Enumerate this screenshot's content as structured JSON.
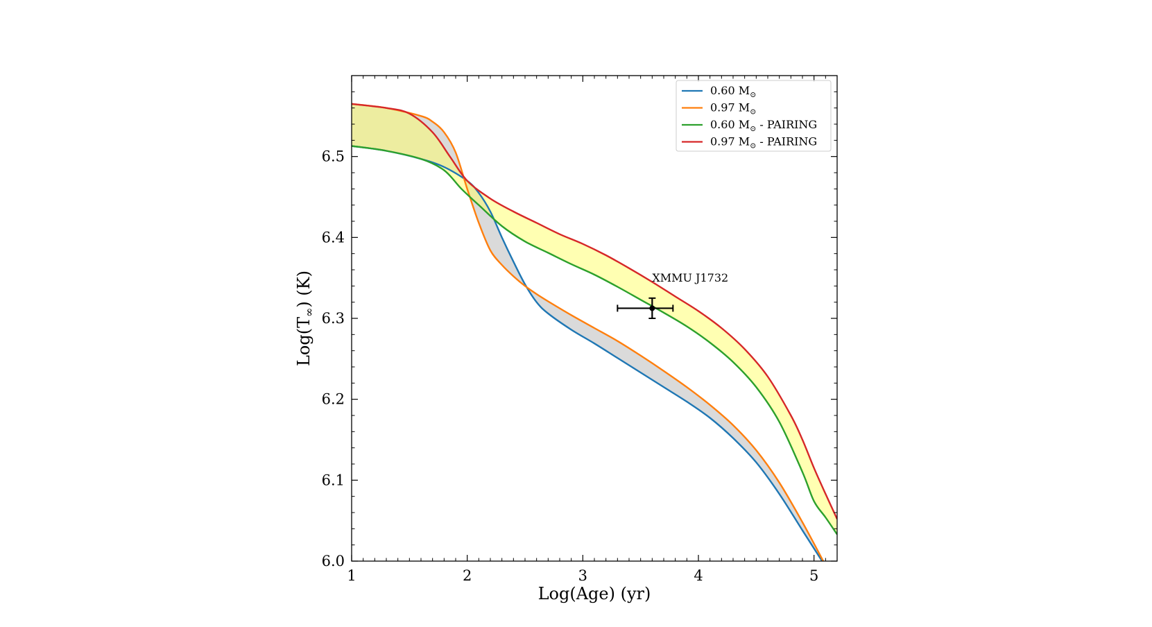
{
  "chart_data": {
    "type": "line",
    "xlabel": "Log(Age) (yr)",
    "ylabel_pre": "Log(T",
    "ylabel_sub": "∞",
    "ylabel_post": ") (K)",
    "xlim": [
      1,
      5.2
    ],
    "ylim": [
      6.0,
      6.6
    ],
    "x_ticks": [
      1,
      2,
      3,
      4,
      5
    ],
    "y_ticks": [
      6.0,
      6.1,
      6.2,
      6.3,
      6.4,
      6.5
    ],
    "x_tick_labels": [
      "1",
      "2",
      "3",
      "4",
      "5"
    ],
    "y_tick_labels": [
      "6.0",
      "6.1",
      "6.2",
      "6.3",
      "6.4",
      "6.5"
    ],
    "legend_position": "top-right",
    "series": [
      {
        "name_main": "0.60 M",
        "name_sub": "⊙",
        "name_suffix": "",
        "color": "#1f77b4",
        "x": [
          1.0,
          1.3,
          1.6,
          1.8,
          2.0,
          2.1,
          2.2,
          2.3,
          2.4,
          2.5,
          2.6,
          2.7,
          2.9,
          3.1,
          3.3,
          3.5,
          3.7,
          3.9,
          4.1,
          4.3,
          4.5,
          4.7,
          4.9,
          5.07
        ],
        "y": [
          6.513,
          6.507,
          6.497,
          6.487,
          6.47,
          6.455,
          6.432,
          6.4,
          6.37,
          6.342,
          6.32,
          6.306,
          6.286,
          6.269,
          6.251,
          6.233,
          6.215,
          6.197,
          6.177,
          6.152,
          6.122,
          6.083,
          6.038,
          6.0
        ]
      },
      {
        "name_main": "0.97 M",
        "name_sub": "⊙",
        "name_suffix": "",
        "color": "#ff7f0e",
        "x": [
          1.0,
          1.3,
          1.6,
          1.7,
          1.8,
          1.9,
          2.0,
          2.1,
          2.2,
          2.3,
          2.4,
          2.5,
          2.6,
          2.7,
          2.9,
          3.1,
          3.3,
          3.5,
          3.7,
          3.9,
          4.1,
          4.3,
          4.5,
          4.7,
          4.9,
          5.08
        ],
        "y": [
          6.565,
          6.56,
          6.55,
          6.543,
          6.53,
          6.505,
          6.46,
          6.418,
          6.384,
          6.366,
          6.352,
          6.34,
          6.33,
          6.321,
          6.304,
          6.288,
          6.272,
          6.254,
          6.235,
          6.215,
          6.193,
          6.168,
          6.137,
          6.097,
          6.048,
          6.0
        ]
      },
      {
        "name_main": "0.60 M",
        "name_sub": "⊙",
        "name_suffix": " - PAIRING",
        "color": "#2ca02c",
        "x": [
          1.0,
          1.3,
          1.6,
          1.8,
          1.95,
          2.1,
          2.3,
          2.5,
          2.7,
          2.9,
          3.1,
          3.3,
          3.5,
          3.7,
          3.9,
          4.1,
          4.3,
          4.5,
          4.7,
          4.9,
          5.0,
          5.1,
          5.2
        ],
        "y": [
          6.513,
          6.507,
          6.497,
          6.483,
          6.46,
          6.44,
          6.414,
          6.395,
          6.381,
          6.367,
          6.354,
          6.339,
          6.323,
          6.307,
          6.29,
          6.27,
          6.246,
          6.215,
          6.172,
          6.11,
          6.074,
          6.054,
          6.033
        ]
      },
      {
        "name_main": "0.97 M",
        "name_sub": "⊙",
        "name_suffix": " - PAIRING",
        "color": "#d62728",
        "x": [
          1.0,
          1.3,
          1.5,
          1.7,
          1.85,
          2.0,
          2.2,
          2.4,
          2.6,
          2.8,
          3.0,
          3.2,
          3.4,
          3.6,
          3.8,
          4.0,
          4.2,
          4.4,
          4.6,
          4.8,
          4.9,
          5.0,
          5.1,
          5.2
        ],
        "y": [
          6.565,
          6.56,
          6.553,
          6.53,
          6.5,
          6.47,
          6.448,
          6.432,
          6.418,
          6.404,
          6.392,
          6.378,
          6.362,
          6.345,
          6.327,
          6.309,
          6.288,
          6.262,
          6.228,
          6.18,
          6.15,
          6.115,
          6.083,
          6.052
        ]
      }
    ],
    "fills": [
      {
        "between": [
          0,
          1
        ],
        "color": "#d3d3d3",
        "opacity": 0.85
      },
      {
        "between": [
          2,
          3
        ],
        "color": "#ffff66",
        "opacity": 0.5
      }
    ],
    "point": {
      "label": "XMMU J1732",
      "x": 3.6,
      "y": 6.3125,
      "x_err": [
        0.3,
        0.18
      ],
      "y_err": 0.0125,
      "color": "#000000"
    }
  }
}
